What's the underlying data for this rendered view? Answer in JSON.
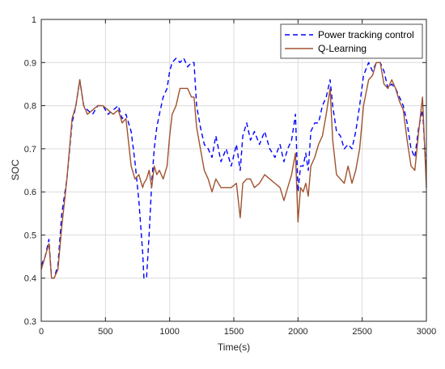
{
  "chart_data": {
    "type": "line",
    "title": "",
    "xlabel": "Time(s)",
    "ylabel": "SOC",
    "xlim": [
      0,
      3000
    ],
    "ylim": [
      0.3,
      1.0
    ],
    "x_ticks": [
      0,
      500,
      1000,
      1500,
      2000,
      2500,
      3000
    ],
    "x_tick_labels": [
      "0",
      "500",
      "1000",
      "1500",
      "2000",
      "2500",
      "3000"
    ],
    "y_ticks": [
      0.3,
      0.4,
      0.5,
      0.6,
      0.7,
      0.8,
      0.9,
      1.0
    ],
    "y_tick_labels": [
      "0.3",
      "0.4",
      "0.5",
      "0.6",
      "0.7",
      "0.8",
      "0.9",
      "1"
    ],
    "grid": true,
    "legend_position": "top-right",
    "series": [
      {
        "name": "Power tracking control",
        "color": "#0000ff",
        "line_style": "dashed",
        "x": [
          0,
          30,
          60,
          80,
          100,
          130,
          160,
          200,
          240,
          270,
          300,
          330,
          360,
          400,
          440,
          480,
          520,
          560,
          600,
          630,
          660,
          700,
          730,
          760,
          790,
          800,
          820,
          840,
          860,
          880,
          900,
          920,
          950,
          980,
          1000,
          1020,
          1050,
          1080,
          1110,
          1140,
          1170,
          1190,
          1210,
          1240,
          1270,
          1300,
          1330,
          1360,
          1400,
          1440,
          1480,
          1520,
          1550,
          1570,
          1600,
          1630,
          1660,
          1700,
          1740,
          1780,
          1820,
          1860,
          1890,
          1920,
          1950,
          1980,
          2000,
          2020,
          2040,
          2060,
          2080,
          2100,
          2130,
          2160,
          2190,
          2220,
          2250,
          2270,
          2300,
          2330,
          2360,
          2390,
          2420,
          2450,
          2480,
          2510,
          2550,
          2580,
          2610,
          2640,
          2670,
          2700,
          2730,
          2760,
          2790,
          2820,
          2850,
          2880,
          2910,
          2940,
          2970,
          3000
        ],
        "y": [
          0.43,
          0.45,
          0.49,
          0.4,
          0.4,
          0.43,
          0.55,
          0.63,
          0.76,
          0.8,
          0.86,
          0.8,
          0.79,
          0.78,
          0.8,
          0.8,
          0.78,
          0.79,
          0.8,
          0.77,
          0.78,
          0.74,
          0.67,
          0.58,
          0.46,
          0.4,
          0.4,
          0.5,
          0.62,
          0.7,
          0.75,
          0.78,
          0.82,
          0.84,
          0.88,
          0.9,
          0.91,
          0.9,
          0.91,
          0.89,
          0.9,
          0.9,
          0.8,
          0.75,
          0.71,
          0.7,
          0.68,
          0.73,
          0.67,
          0.7,
          0.66,
          0.71,
          0.65,
          0.73,
          0.76,
          0.72,
          0.74,
          0.71,
          0.74,
          0.7,
          0.68,
          0.71,
          0.67,
          0.7,
          0.72,
          0.78,
          0.6,
          0.66,
          0.66,
          0.69,
          0.65,
          0.74,
          0.76,
          0.76,
          0.8,
          0.82,
          0.86,
          0.8,
          0.74,
          0.73,
          0.7,
          0.71,
          0.7,
          0.74,
          0.8,
          0.87,
          0.9,
          0.88,
          0.9,
          0.9,
          0.88,
          0.84,
          0.85,
          0.84,
          0.82,
          0.8,
          0.76,
          0.7,
          0.68,
          0.75,
          0.79,
          0.64
        ]
      },
      {
        "name": "Q-Learning",
        "color": "#a0522d",
        "line_style": "solid",
        "x": [
          0,
          30,
          60,
          80,
          100,
          130,
          160,
          200,
          240,
          270,
          300,
          330,
          360,
          400,
          440,
          480,
          520,
          560,
          600,
          630,
          660,
          700,
          730,
          760,
          790,
          800,
          820,
          840,
          860,
          880,
          900,
          920,
          950,
          980,
          1000,
          1020,
          1050,
          1080,
          1110,
          1140,
          1170,
          1190,
          1210,
          1240,
          1270,
          1300,
          1330,
          1360,
          1400,
          1440,
          1480,
          1520,
          1550,
          1570,
          1600,
          1630,
          1660,
          1700,
          1740,
          1780,
          1820,
          1860,
          1890,
          1920,
          1950,
          1980,
          2000,
          2020,
          2040,
          2060,
          2080,
          2100,
          2130,
          2160,
          2190,
          2220,
          2250,
          2270,
          2300,
          2330,
          2360,
          2390,
          2420,
          2450,
          2480,
          2510,
          2550,
          2580,
          2610,
          2640,
          2670,
          2700,
          2730,
          2760,
          2790,
          2820,
          2850,
          2880,
          2910,
          2940,
          2970,
          3000
        ],
        "y": [
          0.42,
          0.45,
          0.48,
          0.4,
          0.4,
          0.42,
          0.52,
          0.63,
          0.77,
          0.8,
          0.86,
          0.8,
          0.78,
          0.79,
          0.8,
          0.8,
          0.79,
          0.78,
          0.79,
          0.76,
          0.77,
          0.66,
          0.63,
          0.64,
          0.61,
          0.62,
          0.63,
          0.65,
          0.61,
          0.66,
          0.64,
          0.65,
          0.63,
          0.66,
          0.73,
          0.78,
          0.8,
          0.84,
          0.84,
          0.84,
          0.82,
          0.82,
          0.75,
          0.7,
          0.65,
          0.63,
          0.6,
          0.63,
          0.61,
          0.61,
          0.61,
          0.62,
          0.54,
          0.62,
          0.63,
          0.63,
          0.61,
          0.62,
          0.64,
          0.63,
          0.62,
          0.61,
          0.58,
          0.61,
          0.64,
          0.69,
          0.53,
          0.61,
          0.6,
          0.62,
          0.59,
          0.66,
          0.68,
          0.71,
          0.73,
          0.78,
          0.84,
          0.72,
          0.64,
          0.63,
          0.62,
          0.66,
          0.62,
          0.65,
          0.7,
          0.8,
          0.86,
          0.87,
          0.9,
          0.9,
          0.85,
          0.84,
          0.86,
          0.84,
          0.81,
          0.79,
          0.72,
          0.66,
          0.65,
          0.74,
          0.82,
          0.61
        ]
      }
    ]
  }
}
